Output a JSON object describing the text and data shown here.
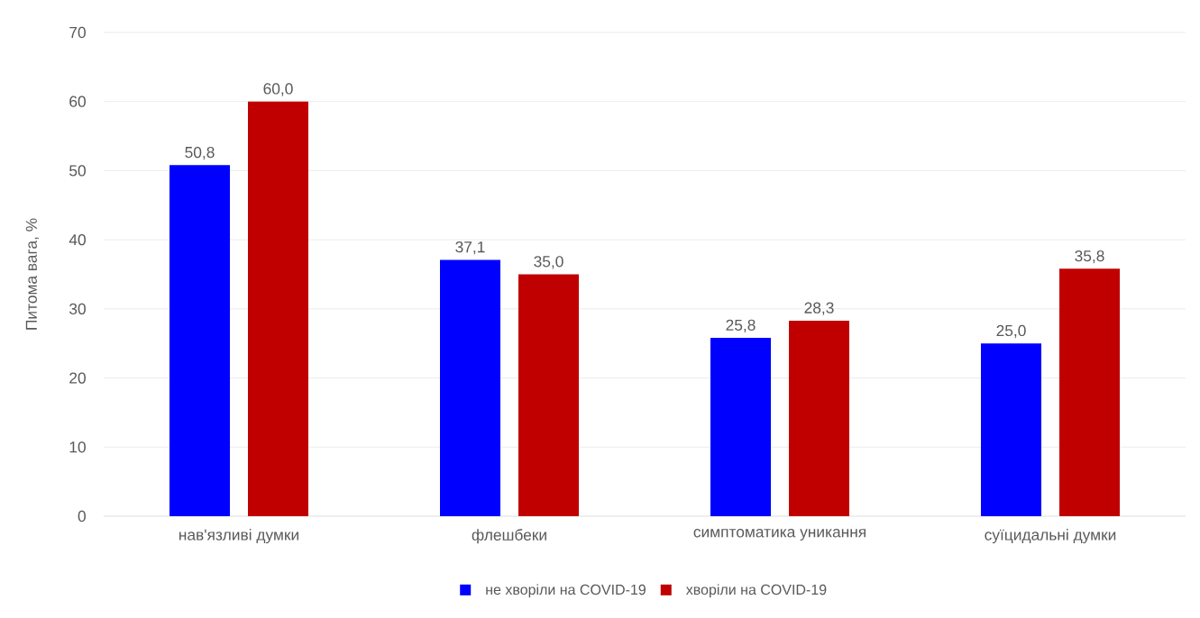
{
  "chart_data": {
    "type": "bar",
    "ylabel": "Питома вага, %",
    "categories": [
      "нав'язливі думки",
      "флешбеки",
      "симптоматика уникання",
      "суїцидальні думки"
    ],
    "series": [
      {
        "name": "не хворіли на COVID-19",
        "color": "#0000ff",
        "values": [
          50.8,
          37.1,
          25.8,
          25.0
        ],
        "value_labels": [
          "50,8",
          "37,1",
          "25,8",
          "25,0"
        ]
      },
      {
        "name": "хворіли на COVID-19",
        "color": "#c00000",
        "values": [
          60.0,
          35.0,
          28.3,
          35.8
        ],
        "value_labels": [
          "60,0",
          "35,0",
          "28,3",
          "35,8"
        ]
      }
    ],
    "ylim": [
      0,
      70
    ],
    "yticks": [
      0,
      10,
      20,
      30,
      40,
      50,
      60,
      70
    ],
    "grid": "y",
    "legend": "bottom"
  }
}
